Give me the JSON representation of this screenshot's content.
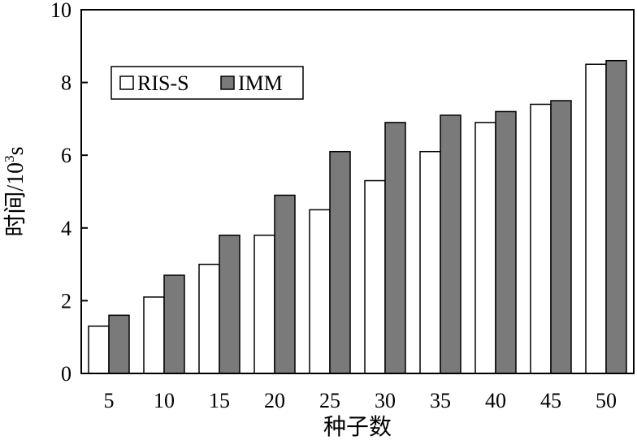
{
  "chart_data": {
    "type": "bar",
    "title": "",
    "xlabel": "种子数",
    "ylabel": "时间/10",
    "ylabel_sup": "3",
    "ylabel_unit": "s",
    "categories": [
      "5",
      "10",
      "15",
      "20",
      "25",
      "30",
      "35",
      "40",
      "45",
      "50"
    ],
    "ylim": [
      0,
      10
    ],
    "yticks": [
      "0",
      "2",
      "4",
      "6",
      "8",
      "10"
    ],
    "grid": false,
    "legend_position": "upper-left",
    "series": [
      {
        "name": "RIS-S",
        "color": "#ffffff",
        "values": [
          1.3,
          2.1,
          3.0,
          3.8,
          4.5,
          5.3,
          6.1,
          6.9,
          7.4,
          8.5
        ]
      },
      {
        "name": "IMM",
        "color": "#7a7a7a",
        "values": [
          1.6,
          2.7,
          3.8,
          4.9,
          6.1,
          6.9,
          7.1,
          7.2,
          7.5,
          8.6
        ]
      }
    ]
  }
}
